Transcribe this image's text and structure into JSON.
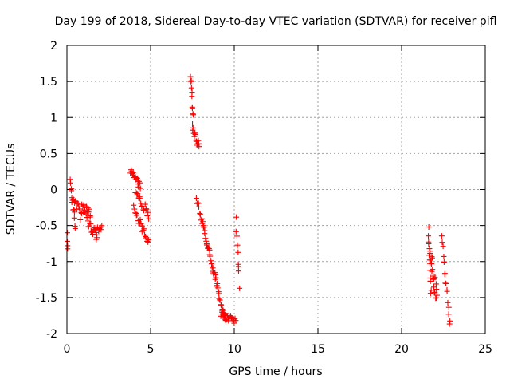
{
  "chart_data": {
    "type": "scatter",
    "title": "Day 199 of 2018, Sidereal Day-to-day VTEC variation (SDTVAR) for receiver pifl",
    "xlabel": "GPS time / hours",
    "ylabel": "SDTVAR / TECUs",
    "xlim": [
      0,
      25
    ],
    "ylim": [
      -2,
      2
    ],
    "xticks": [
      0,
      5,
      10,
      15,
      20,
      25
    ],
    "xtick_labels": [
      "0",
      "5",
      "10",
      "15",
      "20",
      "25"
    ],
    "yticks": [
      -2,
      -1.5,
      -1,
      -0.5,
      0,
      0.5,
      1,
      1.5,
      2
    ],
    "ytick_labels": [
      "-2",
      "-1.5",
      "-1",
      "-0.5",
      "0",
      "0.5",
      "1",
      "1.5",
      "2"
    ],
    "grid": true,
    "marker": "+",
    "color": "#ff0000",
    "series": [
      {
        "name": "SDTVAR",
        "segments": [
          {
            "x0": 0.0,
            "x1": 0.05,
            "y0": -0.6,
            "y1": -0.9,
            "n": 4,
            "noise": 0.08
          },
          {
            "x0": 0.2,
            "x1": 0.5,
            "y0": 0.15,
            "y1": -0.55,
            "n": 14,
            "noise": 0.08
          },
          {
            "x0": 0.4,
            "x1": 0.9,
            "y0": -0.1,
            "y1": -0.4,
            "n": 14,
            "noise": 0.08
          },
          {
            "x0": 0.9,
            "x1": 1.4,
            "y0": -0.25,
            "y1": -0.35,
            "n": 16,
            "noise": 0.07
          },
          {
            "x0": 1.2,
            "x1": 1.8,
            "y0": -0.45,
            "y1": -0.65,
            "n": 16,
            "noise": 0.08
          },
          {
            "x0": 1.7,
            "x1": 2.1,
            "y0": -0.6,
            "y1": -0.55,
            "n": 10,
            "noise": 0.06
          },
          {
            "x0": 3.8,
            "x1": 4.4,
            "y0": 0.25,
            "y1": 0.05,
            "n": 18,
            "noise": 0.05
          },
          {
            "x0": 4.1,
            "x1": 4.9,
            "y0": -0.05,
            "y1": -0.35,
            "n": 18,
            "noise": 0.06
          },
          {
            "x0": 4.0,
            "x1": 4.9,
            "y0": -0.25,
            "y1": -0.75,
            "n": 22,
            "noise": 0.06
          },
          {
            "x0": 7.4,
            "x1": 7.55,
            "y0": 1.58,
            "y1": 1.0,
            "n": 10,
            "noise": 0.05
          },
          {
            "x0": 7.5,
            "x1": 7.9,
            "y0": 0.85,
            "y1": 0.58,
            "n": 14,
            "noise": 0.06
          },
          {
            "x0": 7.75,
            "x1": 9.5,
            "y0": -0.12,
            "y1": -1.85,
            "n": 60,
            "noise": 0.05
          },
          {
            "x0": 9.2,
            "x1": 10.1,
            "y0": -1.72,
            "y1": -1.82,
            "n": 22,
            "noise": 0.05
          },
          {
            "x0": 10.1,
            "x1": 10.3,
            "y0": -0.45,
            "y1": -1.3,
            "n": 10,
            "noise": 0.08
          },
          {
            "x0": 21.6,
            "x1": 21.75,
            "y0": -0.6,
            "y1": -1.45,
            "n": 14,
            "noise": 0.1
          },
          {
            "x0": 21.7,
            "x1": 22.1,
            "y0": -0.85,
            "y1": -1.55,
            "n": 22,
            "noise": 0.15
          },
          {
            "x0": 22.4,
            "x1": 22.9,
            "y0": -0.65,
            "y1": -1.9,
            "n": 16,
            "noise": 0.12
          }
        ]
      }
    ]
  }
}
